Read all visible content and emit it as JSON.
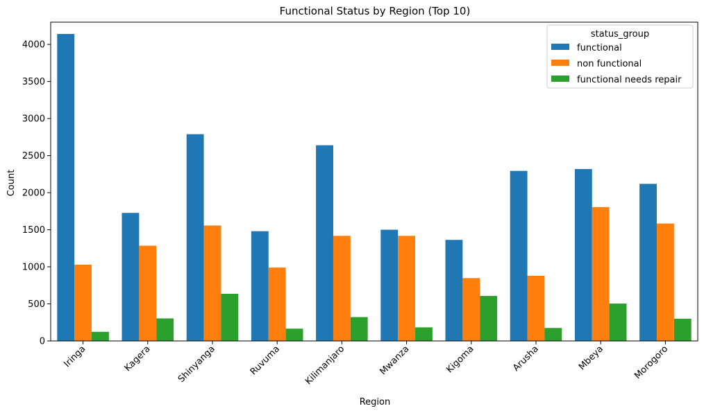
{
  "chart_data": {
    "type": "bar",
    "title": "Functional Status by Region (Top 10)",
    "xlabel": "Region",
    "ylabel": "Count",
    "ylim": [
      0,
      4300
    ],
    "yticks": [
      0,
      500,
      1000,
      1500,
      2000,
      2500,
      3000,
      3500,
      4000
    ],
    "categories": [
      "Iringa",
      "Kagera",
      "Shinyanga",
      "Ruvuma",
      "Kilimanjaro",
      "Mwanza",
      "Kigoma",
      "Arusha",
      "Mbeya",
      "Morogoro"
    ],
    "series": [
      {
        "name": "functional",
        "color": "#1f77b4",
        "values": [
          4141,
          1727,
          2789,
          1480,
          2640,
          1500,
          1363,
          2294,
          2319,
          2119
        ]
      },
      {
        "name": "non functional",
        "color": "#ff7f0e",
        "values": [
          1029,
          1285,
          1557,
          990,
          1418,
          1418,
          848,
          879,
          1806,
          1584
        ]
      },
      {
        "name": "functional needs repair",
        "color": "#2ca02c",
        "values": [
          123,
          304,
          636,
          166,
          322,
          183,
          607,
          175,
          504,
          300
        ]
      }
    ],
    "legend": {
      "title": "status_group",
      "placement": "top-right"
    },
    "grid": false
  }
}
